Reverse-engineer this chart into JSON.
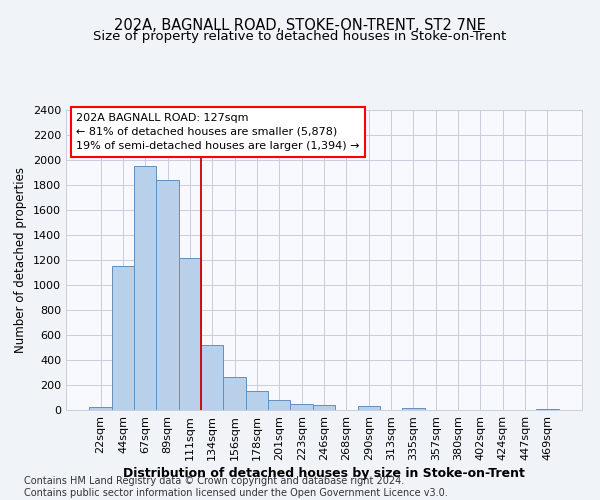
{
  "title": "202A, BAGNALL ROAD, STOKE-ON-TRENT, ST2 7NE",
  "subtitle": "Size of property relative to detached houses in Stoke-on-Trent",
  "xlabel": "Distribution of detached houses by size in Stoke-on-Trent",
  "ylabel": "Number of detached properties",
  "categories": [
    "22sqm",
    "44sqm",
    "67sqm",
    "89sqm",
    "111sqm",
    "134sqm",
    "156sqm",
    "178sqm",
    "201sqm",
    "223sqm",
    "246sqm",
    "268sqm",
    "290sqm",
    "313sqm",
    "335sqm",
    "357sqm",
    "380sqm",
    "402sqm",
    "424sqm",
    "447sqm",
    "469sqm"
  ],
  "values": [
    28,
    1150,
    1955,
    1840,
    1220,
    520,
    265,
    150,
    80,
    48,
    42,
    0,
    35,
    0,
    15,
    0,
    0,
    0,
    0,
    0,
    12
  ],
  "bar_color": "#b8d0ea",
  "bar_edge_color": "#6090c0",
  "vline_color": "#cc0000",
  "annotation_box_text": "202A BAGNALL ROAD: 127sqm\n← 81% of detached houses are smaller (5,878)\n19% of semi-detached houses are larger (1,394) →",
  "ylim": [
    0,
    2400
  ],
  "yticks": [
    0,
    200,
    400,
    600,
    800,
    1000,
    1200,
    1400,
    1600,
    1800,
    2000,
    2200,
    2400
  ],
  "footer_text": "Contains HM Land Registry data © Crown copyright and database right 2024.\nContains public sector information licensed under the Open Government Licence v3.0.",
  "fig_bg_color": "#f0f4f8",
  "plot_bg_color": "#f8f8ff",
  "grid_color": "#c8cee0",
  "title_fontsize": 10.5,
  "subtitle_fontsize": 9.5,
  "xlabel_fontsize": 9,
  "ylabel_fontsize": 8.5,
  "tick_fontsize": 8,
  "annot_fontsize": 8,
  "footer_fontsize": 7
}
